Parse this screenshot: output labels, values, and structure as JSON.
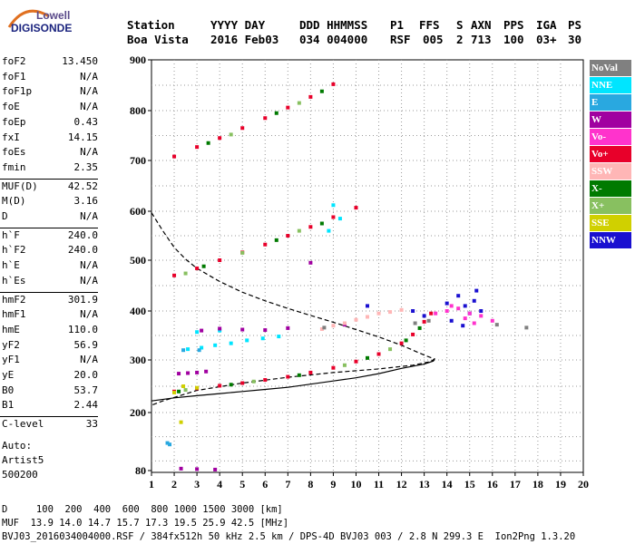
{
  "logo": {
    "top": "Lowell",
    "bottom": "DIGISONDE"
  },
  "header": {
    "columns": [
      "Station",
      "YYYY DAY",
      "DDD HHMMSS",
      "P1",
      "FFS",
      "S",
      "AXN",
      "PPS",
      "IGA",
      "PS"
    ],
    "values": [
      "Boa Vista",
      "2016 Feb03",
      "034 004000",
      "RSF",
      "005",
      "2",
      "713",
      "100",
      "03+",
      "30"
    ]
  },
  "params": [
    {
      "group": [
        {
          "name": "foF2",
          "value": "13.450"
        },
        {
          "name": "foF1",
          "value": "N/A"
        },
        {
          "name": "foF1p",
          "value": "N/A"
        },
        {
          "name": "foE",
          "value": "N/A"
        },
        {
          "name": "foEp",
          "value": "0.43"
        },
        {
          "name": "fxI",
          "value": "14.15"
        },
        {
          "name": "foEs",
          "value": "N/A"
        },
        {
          "name": "fmin",
          "value": "2.35"
        }
      ]
    },
    {
      "group": [
        {
          "name": "MUF(D)",
          "value": "42.52"
        },
        {
          "name": "M(D)",
          "value": "3.16"
        },
        {
          "name": "D",
          "value": "N/A"
        }
      ]
    },
    {
      "group": [
        {
          "name": "h`F",
          "value": "240.0"
        },
        {
          "name": "h`F2",
          "value": "240.0"
        },
        {
          "name": "h`E",
          "value": "N/A"
        },
        {
          "name": "h`Es",
          "value": "N/A"
        }
      ]
    },
    {
      "group": [
        {
          "name": "hmF2",
          "value": "301.9"
        },
        {
          "name": "hmF1",
          "value": "N/A"
        },
        {
          "name": "hmE",
          "value": "110.0"
        },
        {
          "name": "yF2",
          "value": "56.9"
        },
        {
          "name": "yF1",
          "value": "N/A"
        },
        {
          "name": "yE",
          "value": "20.0"
        },
        {
          "name": "B0",
          "value": "53.7"
        },
        {
          "name": "B1",
          "value": "2.44"
        }
      ]
    },
    {
      "group": [
        {
          "name": "C-level",
          "value": "33"
        }
      ]
    }
  ],
  "auto": [
    "Auto:",
    "Artist5",
    "500200"
  ],
  "legend": [
    {
      "label": "NoVal",
      "color": "#808080",
      "text_color": "#ffffff"
    },
    {
      "label": "NNE",
      "color": "#00e5ff",
      "text_color": "#ffffff"
    },
    {
      "label": "E",
      "color": "#29a8e0",
      "text_color": "#ffffff"
    },
    {
      "label": "W",
      "color": "#a000a0",
      "text_color": "#ffffff"
    },
    {
      "label": "Vo-",
      "color": "#ff33cc",
      "text_color": "#ffffff"
    },
    {
      "label": "Vo+",
      "color": "#e8002a",
      "text_color": "#ffffff"
    },
    {
      "label": "SSW",
      "color": "#ffb6b6",
      "text_color": "#ffffff"
    },
    {
      "label": "X-",
      "color": "#007a00",
      "text_color": "#ffffff"
    },
    {
      "label": "X+",
      "color": "#88c060",
      "text_color": "#ffffff"
    },
    {
      "label": "SSE",
      "color": "#d0d000",
      "text_color": "#ffffff"
    },
    {
      "label": "NNW",
      "color": "#1a10d0",
      "text_color": "#ffffff"
    }
  ],
  "footer": {
    "line1": "D     100  200  400  600  800 1000 1500 3000 [km]",
    "line2": "MUF  13.9 14.0 14.7 15.7 17.3 19.5 25.9 42.5 [MHz]",
    "line3": "BVJ03_2016034004000.RSF / 384fx512h 50 kHz 2.5 km / DPS-4D BVJ03 003 / 2.8 N 299.3 E  Ion2Png 1.3.20"
  },
  "chart_data": {
    "type": "scatter",
    "title": "",
    "xlabel": "",
    "ylabel": "",
    "xlim": [
      1,
      20
    ],
    "ylim": [
      80,
      900
    ],
    "x_ticks": [
      "1",
      "2",
      "3",
      "4",
      "5",
      "6",
      "7",
      "8",
      "9",
      "10",
      "11",
      "12",
      "13",
      "14",
      "15",
      "16",
      "17",
      "18",
      "19",
      "20"
    ],
    "y_ticks": [
      "80",
      "200",
      "300",
      "400",
      "500",
      "600",
      "700",
      "800",
      "900"
    ],
    "grid": true,
    "legend_position": "right",
    "series": [
      {
        "name": "Vo+",
        "color": "#e8002a",
        "points": [
          [
            2.0,
            240
          ],
          [
            3.0,
            246
          ],
          [
            4.0,
            251
          ],
          [
            5.0,
            256
          ],
          [
            6.0,
            262
          ],
          [
            7.0,
            268
          ],
          [
            8.0,
            276
          ],
          [
            9.0,
            285
          ],
          [
            10.0,
            297
          ],
          [
            11.0,
            312
          ],
          [
            12.0,
            334
          ],
          [
            12.5,
            352
          ],
          [
            13.0,
            378
          ],
          [
            13.3,
            395
          ],
          [
            2.0,
            470
          ],
          [
            3.0,
            484
          ],
          [
            4.0,
            500
          ],
          [
            5.0,
            516
          ],
          [
            6.0,
            532
          ],
          [
            7.0,
            550
          ],
          [
            8.0,
            568
          ],
          [
            9.0,
            588
          ],
          [
            10.0,
            607
          ],
          [
            2.0,
            708
          ],
          [
            3.0,
            727
          ],
          [
            4.0,
            745
          ],
          [
            5.0,
            765
          ],
          [
            6.0,
            785
          ],
          [
            7.0,
            806
          ],
          [
            8.0,
            827
          ],
          [
            9.0,
            852
          ]
        ]
      },
      {
        "name": "X-",
        "color": "#007a00",
        "points": [
          [
            2.2,
            240
          ],
          [
            4.5,
            253
          ],
          [
            7.5,
            271
          ],
          [
            10.5,
            304
          ],
          [
            12.2,
            340
          ],
          [
            12.8,
            365
          ],
          [
            3.3,
            488
          ],
          [
            6.5,
            541
          ],
          [
            8.5,
            575
          ],
          [
            3.5,
            735
          ],
          [
            6.5,
            795
          ],
          [
            8.5,
            838
          ]
        ]
      },
      {
        "name": "X+",
        "color": "#88c060",
        "points": [
          [
            2.5,
            243
          ],
          [
            5.5,
            259
          ],
          [
            9.5,
            290
          ],
          [
            11.5,
            322
          ],
          [
            2.5,
            474
          ],
          [
            5.0,
            515
          ],
          [
            7.5,
            560
          ],
          [
            4.5,
            752
          ],
          [
            7.5,
            815
          ]
        ]
      },
      {
        "name": "NNE",
        "color": "#00e5ff",
        "points": [
          [
            2.6,
            322
          ],
          [
            3.2,
            325
          ],
          [
            3.8,
            330
          ],
          [
            4.5,
            334
          ],
          [
            5.2,
            340
          ],
          [
            5.9,
            344
          ],
          [
            6.6,
            348
          ],
          [
            3.0,
            357
          ],
          [
            4.0,
            360
          ],
          [
            9.0,
            612
          ],
          [
            9.3,
            585
          ],
          [
            8.8,
            560
          ]
        ]
      },
      {
        "name": "W",
        "color": "#a000a0",
        "points": [
          [
            2.2,
            274
          ],
          [
            2.6,
            275
          ],
          [
            3.0,
            276
          ],
          [
            3.4,
            278
          ],
          [
            3.2,
            360
          ],
          [
            4.0,
            364
          ],
          [
            5.0,
            362
          ],
          [
            6.0,
            361
          ],
          [
            7.0,
            365
          ],
          [
            9.5,
            372
          ],
          [
            2.3,
            84
          ],
          [
            3.0,
            83
          ],
          [
            3.8,
            82
          ],
          [
            8.0,
            495
          ]
        ]
      },
      {
        "name": "SSW",
        "color": "#ffb6b6",
        "points": [
          [
            8.5,
            363
          ],
          [
            9.0,
            370
          ],
          [
            9.5,
            375
          ],
          [
            10.0,
            382
          ],
          [
            10.5,
            388
          ],
          [
            11.0,
            395
          ],
          [
            11.5,
            398
          ],
          [
            12.0,
            402
          ]
        ]
      },
      {
        "name": "NNW",
        "color": "#1a10d0",
        "points": [
          [
            10.5,
            410
          ],
          [
            12.5,
            400
          ],
          [
            13.0,
            390
          ],
          [
            14.5,
            430
          ],
          [
            14.8,
            410
          ],
          [
            15.0,
            395
          ],
          [
            15.2,
            420
          ],
          [
            14.2,
            380
          ],
          [
            15.5,
            400
          ],
          [
            14.0,
            415
          ],
          [
            15.3,
            440
          ],
          [
            14.7,
            370
          ]
        ]
      },
      {
        "name": "Vo-",
        "color": "#ff33cc",
        "points": [
          [
            13.5,
            395
          ],
          [
            14.0,
            400
          ],
          [
            14.5,
            405
          ],
          [
            15.0,
            395
          ],
          [
            15.5,
            390
          ],
          [
            14.2,
            410
          ],
          [
            14.8,
            385
          ],
          [
            16.0,
            380
          ],
          [
            15.2,
            375
          ]
        ]
      },
      {
        "name": "SSE",
        "color": "#d0d000",
        "points": [
          [
            2.0,
            238
          ],
          [
            2.4,
            250
          ],
          [
            3.0,
            247
          ],
          [
            2.3,
            180
          ]
        ]
      },
      {
        "name": "E",
        "color": "#29a8e0",
        "points": [
          [
            2.4,
            320
          ],
          [
            3.1,
            320
          ],
          [
            1.7,
            137
          ],
          [
            1.8,
            134
          ]
        ]
      },
      {
        "name": "NoVal",
        "color": "#808080",
        "points": [
          [
            8.6,
            366
          ],
          [
            12.6,
            375
          ],
          [
            16.2,
            372
          ],
          [
            17.5,
            366
          ],
          [
            13.2,
            380
          ]
        ]
      }
    ],
    "curves": [
      {
        "label": "MUF-D",
        "style": "dashed",
        "color": "#000000",
        "points": [
          [
            1.0,
            597
          ],
          [
            1.5,
            560
          ],
          [
            2.0,
            526
          ],
          [
            2.5,
            502
          ],
          [
            3.0,
            484
          ],
          [
            4.0,
            458
          ],
          [
            5.0,
            437
          ],
          [
            6.0,
            420
          ],
          [
            7.0,
            405
          ],
          [
            8.0,
            391
          ],
          [
            9.0,
            377
          ],
          [
            10.0,
            362
          ],
          [
            11.0,
            347
          ],
          [
            12.0,
            330
          ],
          [
            13.0,
            310
          ],
          [
            13.45,
            302
          ],
          [
            13.3,
            297
          ],
          [
            12.5,
            290
          ],
          [
            11.0,
            283
          ],
          [
            9.0,
            276
          ],
          [
            7.0,
            267
          ],
          [
            5.0,
            256
          ],
          [
            3.0,
            242
          ],
          [
            1.5,
            222
          ],
          [
            1.0,
            214
          ]
        ]
      },
      {
        "label": "true-height",
        "style": "solid",
        "color": "#000000",
        "points": [
          [
            1.0,
            222
          ],
          [
            2.0,
            228
          ],
          [
            3.0,
            232
          ],
          [
            4.0,
            236
          ],
          [
            5.0,
            240
          ],
          [
            6.0,
            244
          ],
          [
            7.0,
            248
          ],
          [
            8.0,
            254
          ],
          [
            9.0,
            260
          ],
          [
            10.0,
            266
          ],
          [
            11.0,
            274
          ],
          [
            12.0,
            284
          ],
          [
            13.0,
            292
          ],
          [
            13.4,
            298
          ],
          [
            13.45,
            301
          ]
        ]
      }
    ]
  }
}
